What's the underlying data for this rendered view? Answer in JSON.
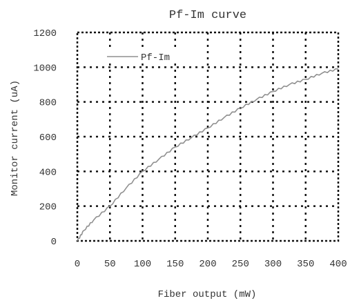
{
  "chart_data": {
    "type": "line",
    "title": "Pf-Im curve",
    "xlabel": "Fiber output (mW)",
    "ylabel": "Monitor current (uA)",
    "xlim": [
      0,
      400
    ],
    "ylim": [
      0,
      1200
    ],
    "xticks": [
      0,
      50,
      100,
      150,
      200,
      250,
      300,
      350,
      400
    ],
    "yticks": [
      0,
      200,
      400,
      600,
      800,
      1000,
      1200
    ],
    "grid": true,
    "legend": "top-left",
    "series": [
      {
        "name": "Pf-Im",
        "color": "#8f8f8f",
        "x": [
          0,
          10,
          25,
          50,
          75,
          100,
          125,
          150,
          175,
          200,
          225,
          250,
          275,
          300,
          325,
          350,
          375,
          400
        ],
        "y": [
          0,
          60,
          120,
          200,
          305,
          400,
          470,
          540,
          595,
          650,
          710,
          765,
          815,
          860,
          900,
          930,
          965,
          990
        ]
      }
    ]
  }
}
